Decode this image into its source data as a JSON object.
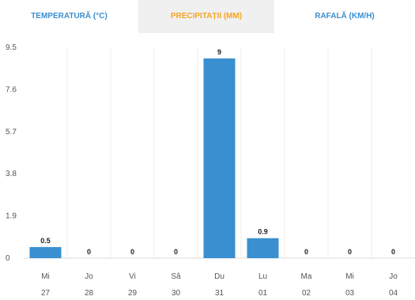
{
  "tabs": [
    {
      "label": "TEMPERATURĂ (°C)",
      "color": "#3a8fd0",
      "active": false
    },
    {
      "label": "PRECIPITAȚII (MM)",
      "color": "#f5a623",
      "active": true
    },
    {
      "label": "RAFALĂ (KM/H)",
      "color": "#3a8fd0",
      "active": false
    }
  ],
  "colors": {
    "bar": "#3a8fd0",
    "grid": "#ececec",
    "axis_text": "#555555",
    "label_text": "#222222"
  },
  "chart_data": {
    "type": "bar",
    "categories": [
      {
        "day": "Mi",
        "date": "27"
      },
      {
        "day": "Jo",
        "date": "28"
      },
      {
        "day": "Vi",
        "date": "29"
      },
      {
        "day": "Sâ",
        "date": "30"
      },
      {
        "day": "Du",
        "date": "31"
      },
      {
        "day": "Lu",
        "date": "01"
      },
      {
        "day": "Ma",
        "date": "02"
      },
      {
        "day": "Mi",
        "date": "03"
      },
      {
        "day": "Jo",
        "date": "04"
      }
    ],
    "values": [
      0.5,
      0,
      0,
      0,
      9,
      0.9,
      0,
      0,
      0
    ],
    "data_labels": [
      "0.5",
      "0",
      "0",
      "0",
      "9",
      "0.9",
      "0",
      "0",
      "0"
    ],
    "yticks": [
      "0",
      "1.9",
      "3.8",
      "5.7",
      "7.6",
      "9.5"
    ],
    "ylim": [
      0,
      9.5
    ],
    "grid": true
  }
}
